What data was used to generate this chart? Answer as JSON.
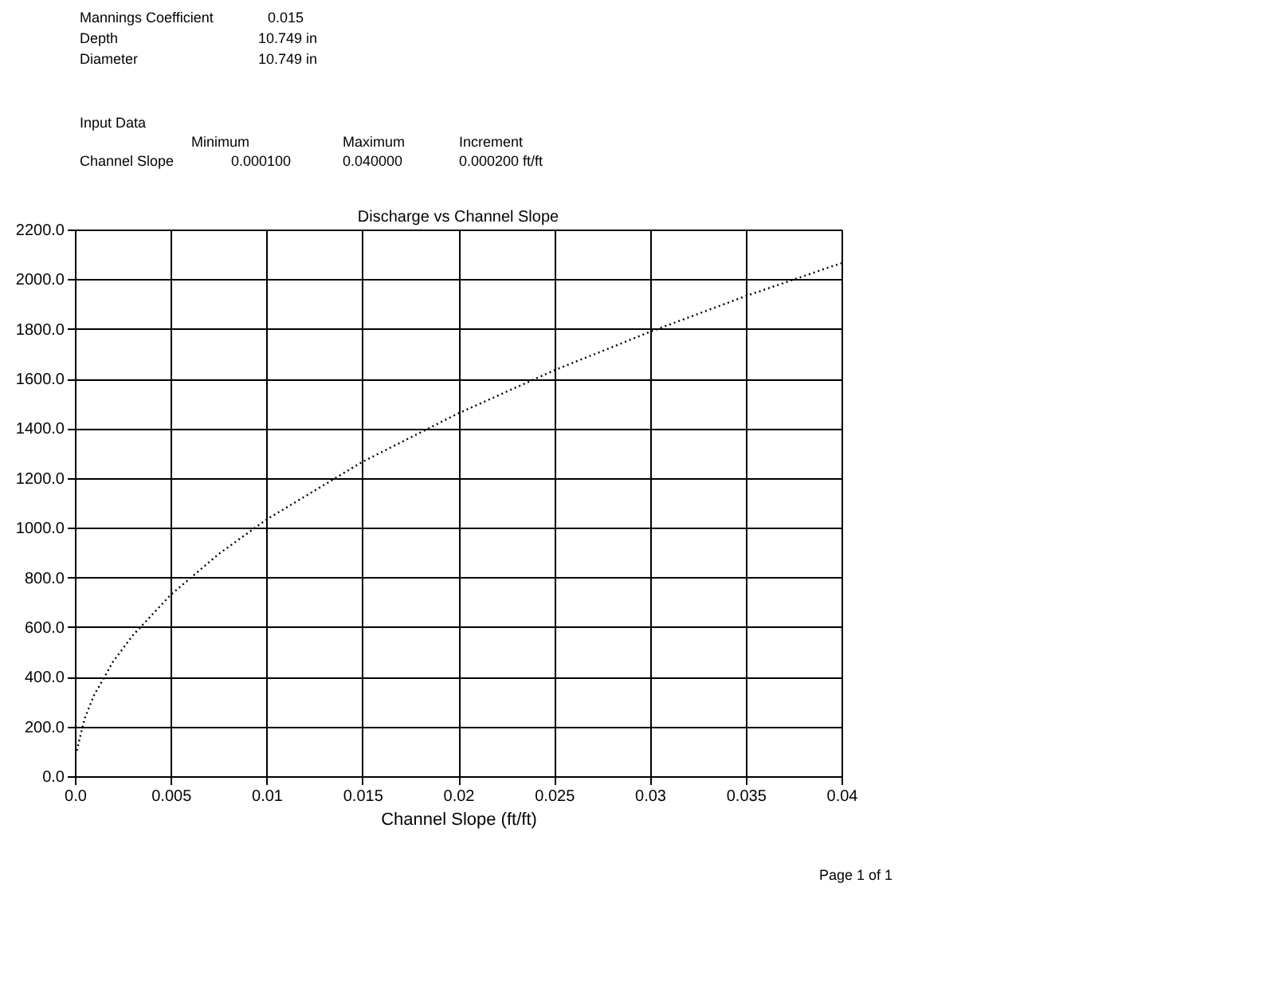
{
  "chart_data": {
    "type": "line",
    "title": "Discharge vs Channel Slope",
    "xlabel": "Channel Slope (ft/ft)",
    "x": [
      0.0001,
      0.0005,
      0.001,
      0.002,
      0.003,
      0.005,
      0.0075,
      0.01,
      0.015,
      0.02,
      0.025,
      0.03,
      0.035,
      0.04
    ],
    "series": [
      {
        "color": "#000000",
        "values": [
          103,
          231,
          326,
          462,
          565,
          730,
          894,
          1033,
          1265,
          1460,
          1633,
          1788,
          1932,
          2065
        ]
      }
    ],
    "xlim": [
      0,
      0.04
    ],
    "ylim": [
      0,
      2200
    ],
    "xticks": [
      {
        "value": 0,
        "label": "0.0"
      },
      0.005,
      {
        "value": 0.01,
        "label": "0.01"
      },
      0.015,
      {
        "value": 0.02,
        "label": "0.02"
      },
      0.025,
      {
        "value": 0.03,
        "label": "0.03"
      },
      0.035,
      {
        "value": 0.04,
        "label": "0.04"
      }
    ],
    "yticks": [
      {
        "value": 0,
        "label": "0.0"
      },
      {
        "value": 200,
        "label": "200.0"
      },
      {
        "value": 400,
        "label": "400.0"
      },
      {
        "value": 600,
        "label": "600.0"
      },
      {
        "value": 800,
        "label": "800.0"
      },
      {
        "value": 1000,
        "label": "1000.0"
      },
      {
        "value": 1200,
        "label": "1200.0"
      },
      {
        "value": 1400,
        "label": "1400.0"
      },
      {
        "value": 1600,
        "label": "1600.0"
      },
      {
        "value": 1800,
        "label": "1800.0"
      },
      {
        "value": 2000,
        "label": "2000.0"
      },
      {
        "value": 2200,
        "label": "2200.0"
      }
    ],
    "grid": true,
    "marker": "none",
    "line_style": "dotted",
    "annotations": [
      "Mannings Coefficient",
      "0.015",
      "Depth",
      "10.749 in",
      "Diameter",
      "10.749 in",
      "Input Data",
      "Minimum",
      "Maximum",
      "Increment",
      "Channel Slope",
      "0.000100",
      "0.040000",
      "0.000200 ft/ft",
      "Page 1 of 1"
    ]
  }
}
